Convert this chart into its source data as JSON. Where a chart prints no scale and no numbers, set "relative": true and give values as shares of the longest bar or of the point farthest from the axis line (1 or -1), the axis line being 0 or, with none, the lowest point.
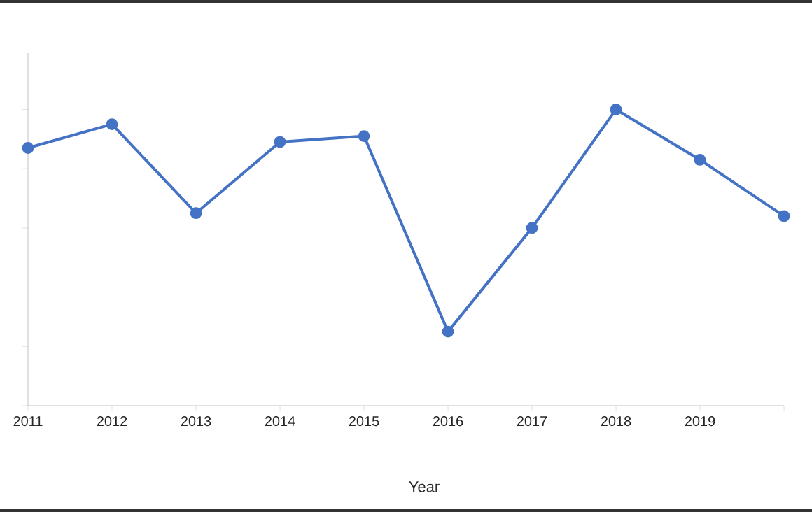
{
  "chart_data": {
    "type": "line",
    "xlabel": "Year",
    "relative": true,
    "categories": [
      "2011",
      "2012",
      "2013",
      "2014",
      "2015",
      "2016",
      "2017",
      "2018",
      "2019",
      null
    ],
    "series": [
      {
        "color": "#4472c4",
        "values": [
          0.87,
          0.95,
          0.65,
          0.89,
          0.91,
          0.25,
          0.6,
          1,
          0.83,
          0.64
        ]
      }
    ],
    "marker": "circle",
    "line_style": "solid",
    "grid": false
  }
}
